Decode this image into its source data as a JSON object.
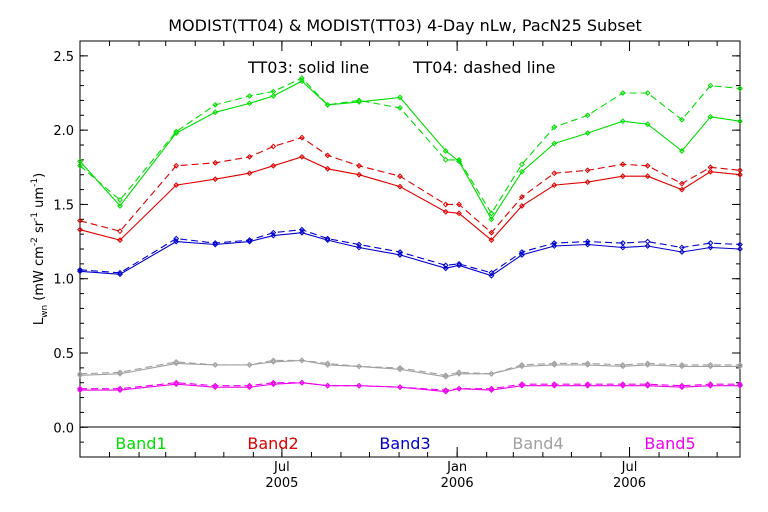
{
  "chart_data": {
    "type": "line",
    "title": "MODIST(TT04) & MODIST(TT03) 4-Day nLw, PacN25 Subset",
    "ylabel_main": "L",
    "ylabel_sub": "wn",
    "ylabel_units": " (mW cm",
    "ylabel_sup1": "-2",
    "ylabel_mid": " sr",
    "ylabel_sup2": "-1",
    "ylabel_end": " um",
    "ylabel_sup3": "-1",
    "ylabel_close": ")",
    "annotation_solid": "TT03: solid line",
    "annotation_dashed": "TT04: dashed line",
    "ylim": [
      -0.2,
      2.6
    ],
    "yticks": [
      "0.0",
      "0.5",
      "1.0",
      "1.5",
      "2.0",
      "2.5"
    ],
    "ytick_values": [
      0.0,
      0.5,
      1.0,
      1.5,
      2.0,
      2.5
    ],
    "xlim": [
      "2004-12-01",
      "2006-10-25"
    ],
    "xticks": [
      {
        "date": "2005-07-01",
        "top": "Jul",
        "bottom": "2005"
      },
      {
        "date": "2006-01-01",
        "top": "Jan",
        "bottom": "2006"
      },
      {
        "date": "2006-07-01",
        "top": "Jul",
        "bottom": "2006"
      }
    ],
    "x": [
      "2004-12-01",
      "2005-01-12",
      "2005-03-12",
      "2005-04-22",
      "2005-05-28",
      "2005-06-22",
      "2005-07-22",
      "2005-08-18",
      "2005-09-20",
      "2005-11-02",
      "2005-12-20",
      "2006-01-03",
      "2006-02-06",
      "2006-03-10",
      "2006-04-13",
      "2006-05-18",
      "2006-06-24",
      "2006-07-20",
      "2006-08-25",
      "2006-09-24",
      "2006-10-25"
    ],
    "series": [
      {
        "name": "Band1",
        "color": "#00dd00",
        "style": "solid",
        "values": [
          1.79,
          1.49,
          1.98,
          2.12,
          2.18,
          2.23,
          2.33,
          2.17,
          2.19,
          2.22,
          1.86,
          1.79,
          1.4,
          1.72,
          1.91,
          1.98,
          2.06,
          2.04,
          1.86,
          2.09,
          2.06
        ]
      },
      {
        "name": "Band1",
        "color": "#00dd00",
        "style": "dashed",
        "values": [
          1.76,
          1.53,
          1.99,
          2.17,
          2.23,
          2.26,
          2.35,
          2.17,
          2.2,
          2.15,
          1.8,
          1.8,
          1.44,
          1.77,
          2.02,
          2.1,
          2.25,
          2.25,
          2.07,
          2.3,
          2.28
        ]
      },
      {
        "name": "Band2",
        "color": "#dd0000",
        "style": "solid",
        "values": [
          1.33,
          1.26,
          1.63,
          1.67,
          1.71,
          1.76,
          1.82,
          1.74,
          1.7,
          1.62,
          1.45,
          1.44,
          1.26,
          1.49,
          1.63,
          1.65,
          1.69,
          1.69,
          1.6,
          1.72,
          1.7
        ]
      },
      {
        "name": "Band2",
        "color": "#dd0000",
        "style": "dashed",
        "values": [
          1.39,
          1.32,
          1.76,
          1.78,
          1.82,
          1.89,
          1.95,
          1.83,
          1.76,
          1.69,
          1.5,
          1.5,
          1.31,
          1.55,
          1.71,
          1.73,
          1.77,
          1.76,
          1.64,
          1.75,
          1.73
        ]
      },
      {
        "name": "Band3",
        "color": "#0000cc",
        "style": "solid",
        "values": [
          1.05,
          1.03,
          1.25,
          1.23,
          1.25,
          1.29,
          1.31,
          1.26,
          1.21,
          1.16,
          1.07,
          1.09,
          1.02,
          1.16,
          1.22,
          1.23,
          1.21,
          1.22,
          1.18,
          1.21,
          1.2
        ]
      },
      {
        "name": "Band3",
        "color": "#0000cc",
        "style": "dashed",
        "values": [
          1.06,
          1.04,
          1.27,
          1.24,
          1.26,
          1.31,
          1.33,
          1.27,
          1.23,
          1.18,
          1.09,
          1.1,
          1.04,
          1.18,
          1.24,
          1.25,
          1.24,
          1.25,
          1.21,
          1.24,
          1.23
        ]
      },
      {
        "name": "Band4",
        "color": "#a0a0a0",
        "style": "solid",
        "values": [
          0.35,
          0.36,
          0.43,
          0.42,
          0.42,
          0.44,
          0.45,
          0.42,
          0.41,
          0.39,
          0.34,
          0.36,
          0.36,
          0.41,
          0.42,
          0.42,
          0.41,
          0.42,
          0.41,
          0.41,
          0.41
        ]
      },
      {
        "name": "Band4",
        "color": "#a0a0a0",
        "style": "dashed",
        "values": [
          0.36,
          0.37,
          0.44,
          0.42,
          0.42,
          0.45,
          0.45,
          0.43,
          0.41,
          0.4,
          0.35,
          0.37,
          0.36,
          0.42,
          0.43,
          0.43,
          0.42,
          0.43,
          0.42,
          0.42,
          0.42
        ]
      },
      {
        "name": "Band5",
        "color": "#ee00ee",
        "style": "solid",
        "values": [
          0.25,
          0.25,
          0.29,
          0.27,
          0.27,
          0.29,
          0.3,
          0.28,
          0.28,
          0.27,
          0.24,
          0.26,
          0.25,
          0.28,
          0.28,
          0.28,
          0.28,
          0.28,
          0.27,
          0.28,
          0.28
        ]
      },
      {
        "name": "Band5",
        "color": "#ee00ee",
        "style": "dashed",
        "values": [
          0.26,
          0.26,
          0.3,
          0.28,
          0.28,
          0.3,
          0.3,
          0.28,
          0.28,
          0.27,
          0.25,
          0.26,
          0.26,
          0.29,
          0.29,
          0.29,
          0.29,
          0.29,
          0.28,
          0.29,
          0.29
        ]
      }
    ],
    "legend": [
      {
        "label": "Band1",
        "color": "#00dd00"
      },
      {
        "label": "Band2",
        "color": "#dd0000"
      },
      {
        "label": "Band3",
        "color": "#0000cc"
      },
      {
        "label": "Band4",
        "color": "#a0a0a0"
      },
      {
        "label": "Band5",
        "color": "#ee00ee"
      }
    ],
    "legend_placement": "bottom-inside",
    "grid": false
  }
}
